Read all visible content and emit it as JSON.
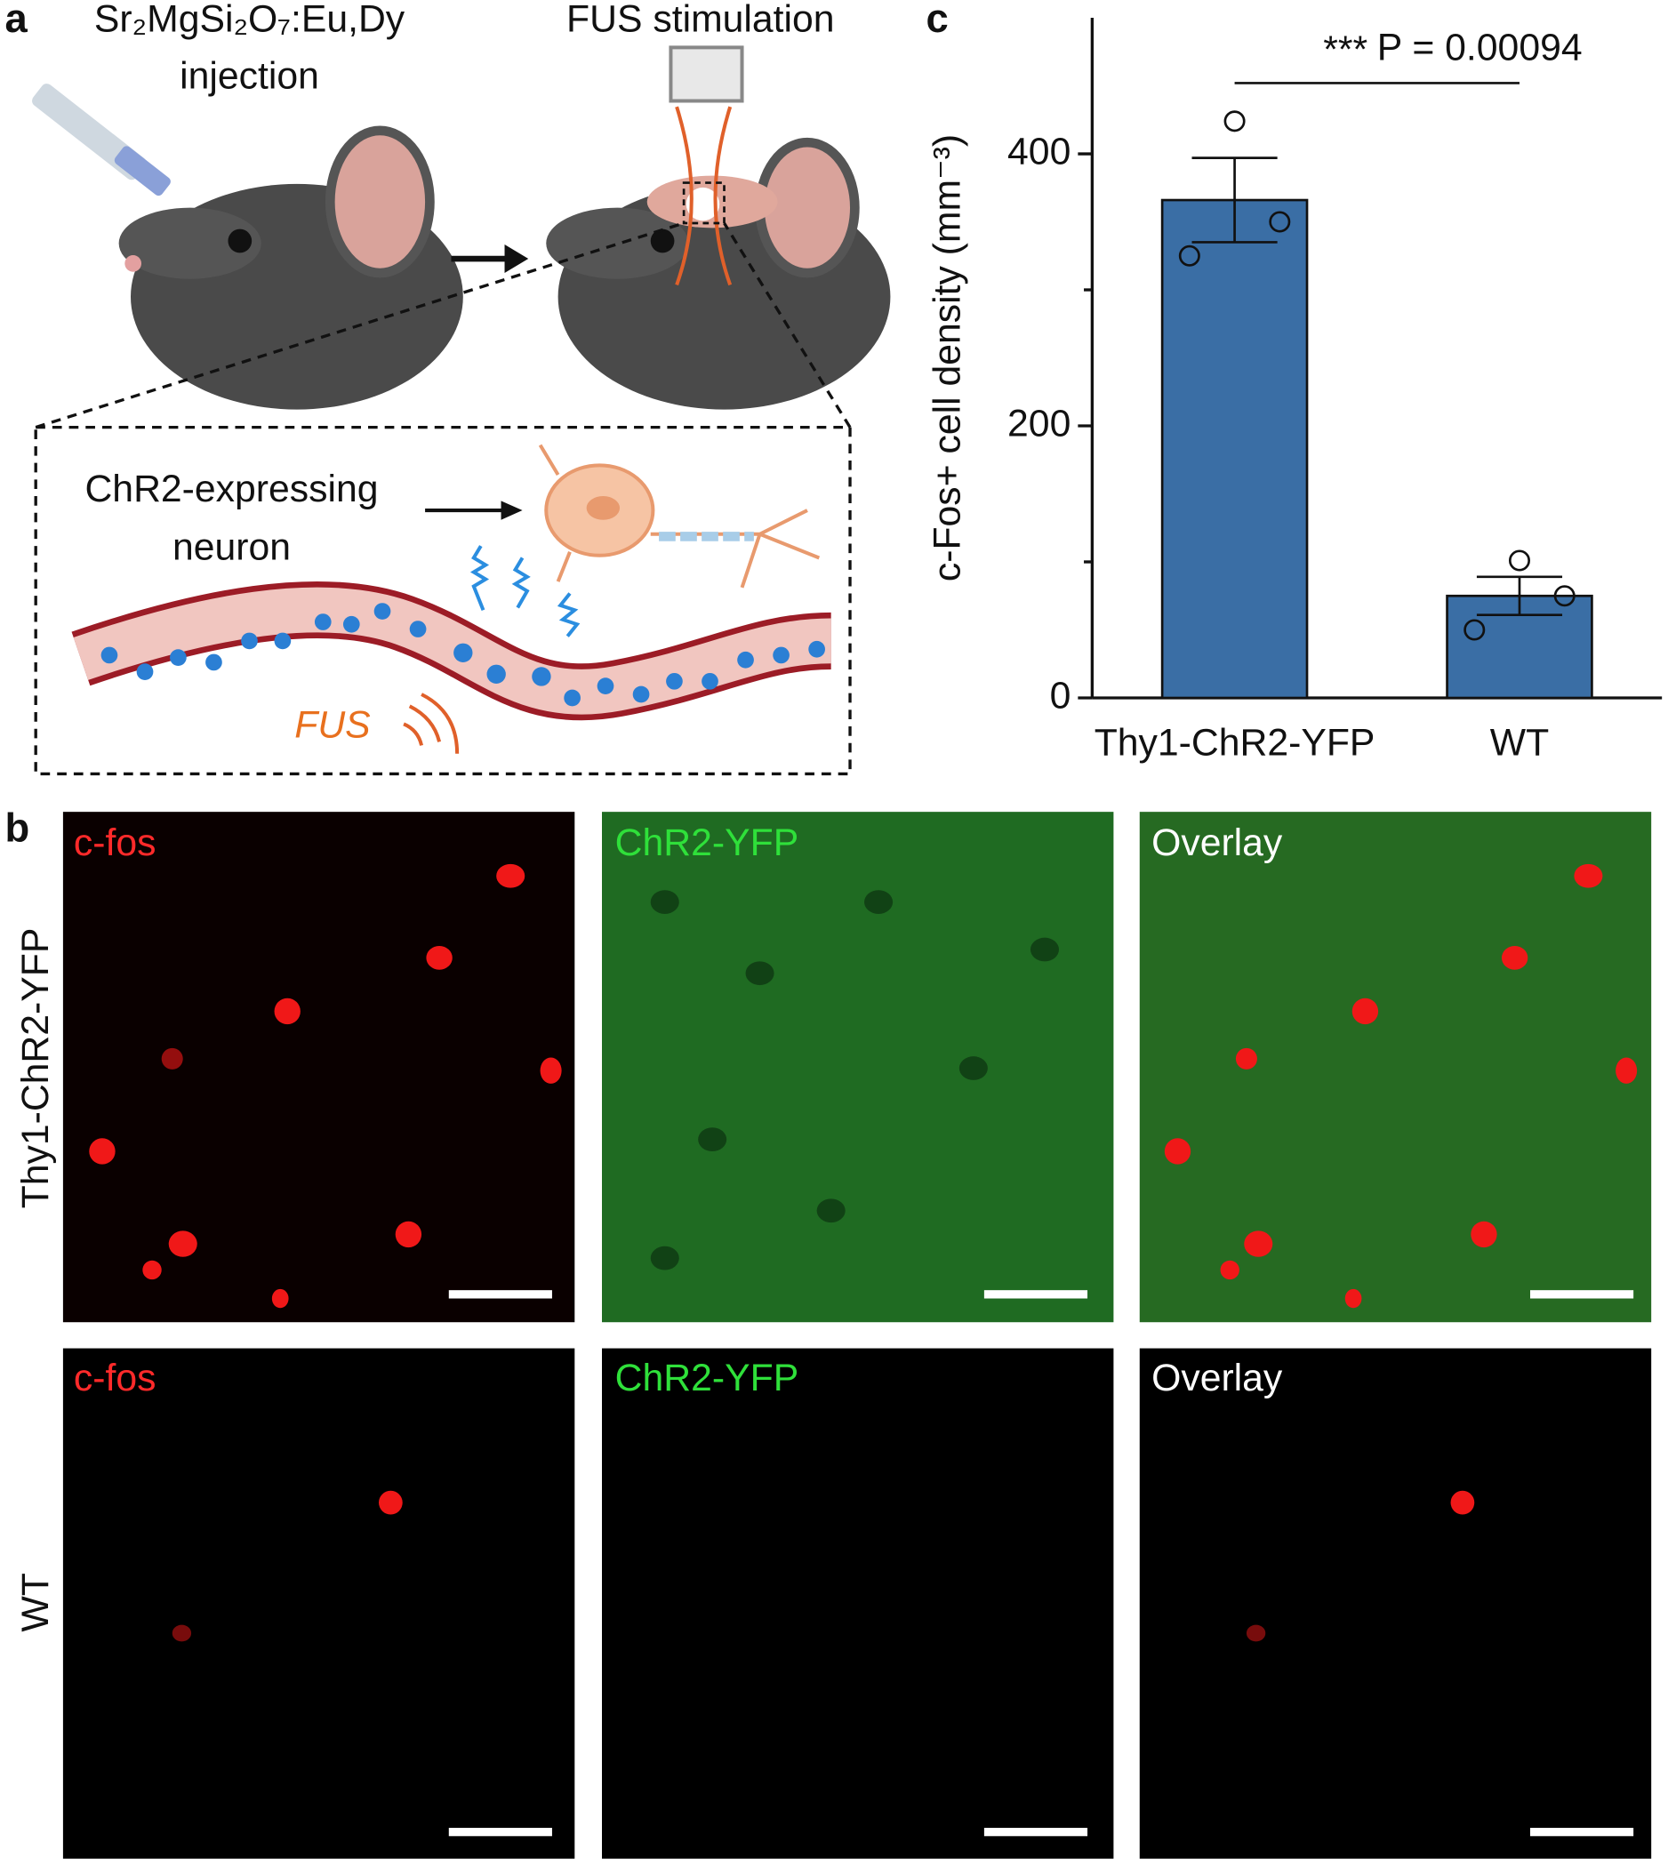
{
  "panel_a": {
    "label": "a",
    "injection_lines": [
      "Sr₂MgSi₂O₇:Eu,Dy",
      "injection"
    ],
    "stimulation": "FUS stimulation",
    "neuron_lines": [
      "ChR2-expressing",
      "neuron"
    ],
    "fus": "FUS"
  },
  "panel_b": {
    "label": "b",
    "rows": [
      {
        "label": "Thy1-ChR2-YFP",
        "channels": [
          "c-fos",
          "ChR2-YFP",
          "Overlay"
        ]
      },
      {
        "label": "WT",
        "channels": [
          "c-fos",
          "ChR2-YFP",
          "Overlay"
        ]
      }
    ]
  },
  "chart_data": {
    "type": "bar",
    "panel_label": "c",
    "ylabel": "c-Fos+ cell density (mm⁻³)",
    "categories": [
      "Thy1-ChR2-YFP",
      "WT"
    ],
    "series": [
      {
        "color": "#3a6ea5",
        "values": [
          366,
          75
        ],
        "errors": [
          31,
          14
        ],
        "points": [
          [
            424,
            350,
            325
          ],
          [
            101,
            75,
            50
          ]
        ]
      }
    ],
    "ylim": [
      0,
      500
    ],
    "yticks": [
      0,
      200,
      400
    ],
    "yminorticks": [
      100,
      300
    ],
    "significance": "***",
    "p_text": "P = 0.00094"
  }
}
